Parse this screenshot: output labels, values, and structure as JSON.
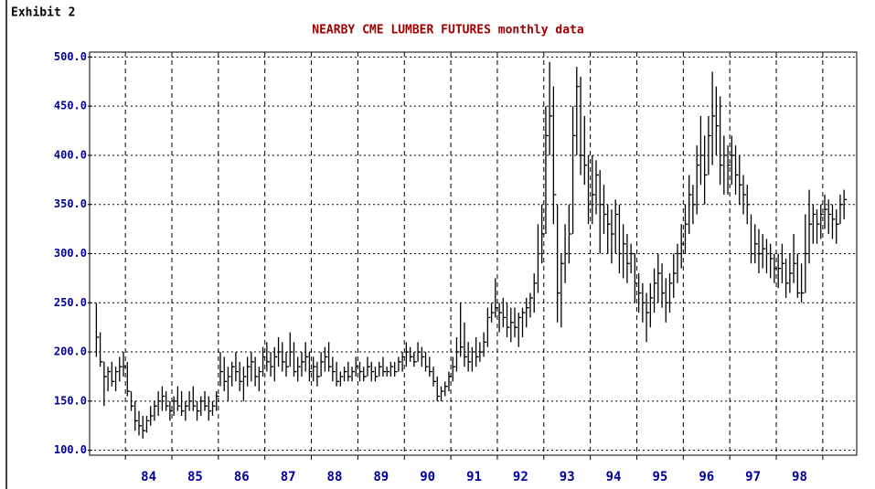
{
  "exhibit": "Exhibit 2",
  "chart_data": {
    "type": "ohlc",
    "title": "NEARBY CME LUMBER FUTURES monthly data",
    "color": "#000000",
    "xlim": [
      1983.23,
      1999.73
    ],
    "ylim": [
      95,
      505
    ],
    "yticks": [
      {
        "value": 100,
        "label": "100.0"
      },
      {
        "value": 150,
        "label": "150.0"
      },
      {
        "value": 200,
        "label": "200.0"
      },
      {
        "value": 250,
        "label": "250.0"
      },
      {
        "value": 300,
        "label": "300.0"
      },
      {
        "value": 350,
        "label": "350.0"
      },
      {
        "value": 400,
        "label": "400.0"
      },
      {
        "value": 450,
        "label": "450.0"
      },
      {
        "value": 500,
        "label": "500.0"
      }
    ],
    "xticks": [
      {
        "value": 1984.5,
        "label": "84"
      },
      {
        "value": 1985.5,
        "label": "85"
      },
      {
        "value": 1986.5,
        "label": "86"
      },
      {
        "value": 1987.5,
        "label": "87"
      },
      {
        "value": 1988.5,
        "label": "88"
      },
      {
        "value": 1989.5,
        "label": "89"
      },
      {
        "value": 1990.5,
        "label": "90"
      },
      {
        "value": 1991.5,
        "label": "91"
      },
      {
        "value": 1992.5,
        "label": "92"
      },
      {
        "value": 1993.5,
        "label": "93"
      },
      {
        "value": 1994.5,
        "label": "94"
      },
      {
        "value": 1995.5,
        "label": "95"
      },
      {
        "value": 1996.5,
        "label": "96"
      },
      {
        "value": 1997.5,
        "label": "97"
      },
      {
        "value": 1998.5,
        "label": "98"
      }
    ],
    "xgrid": [
      1984,
      1985,
      1986,
      1987,
      1988,
      1989,
      1990,
      1991,
      1992,
      1993,
      1994,
      1995,
      1996,
      1997,
      1998,
      1999
    ],
    "grid": true,
    "x": [
      1983.375,
      1983.458,
      1983.542,
      1983.625,
      1983.708,
      1983.792,
      1983.875,
      1983.958,
      1984.042,
      1984.125,
      1984.208,
      1984.292,
      1984.375,
      1984.458,
      1984.542,
      1984.625,
      1984.708,
      1984.792,
      1984.875,
      1984.958,
      1985.042,
      1985.125,
      1985.208,
      1985.292,
      1985.375,
      1985.458,
      1985.542,
      1985.625,
      1985.708,
      1985.792,
      1985.875,
      1985.958,
      1986.042,
      1986.125,
      1986.208,
      1986.292,
      1986.375,
      1986.458,
      1986.542,
      1986.625,
      1986.708,
      1986.792,
      1986.875,
      1986.958,
      1987.042,
      1987.125,
      1987.208,
      1987.292,
      1987.375,
      1987.458,
      1987.542,
      1987.625,
      1987.708,
      1987.792,
      1987.875,
      1987.958,
      1988.042,
      1988.125,
      1988.208,
      1988.292,
      1988.375,
      1988.458,
      1988.542,
      1988.625,
      1988.708,
      1988.792,
      1988.875,
      1988.958,
      1989.042,
      1989.125,
      1989.208,
      1989.292,
      1989.375,
      1989.458,
      1989.542,
      1989.625,
      1989.708,
      1989.792,
      1989.875,
      1989.958,
      1990.042,
      1990.125,
      1990.208,
      1990.292,
      1990.375,
      1990.458,
      1990.542,
      1990.625,
      1990.708,
      1990.792,
      1990.875,
      1990.958,
      1991.042,
      1991.125,
      1991.208,
      1991.292,
      1991.375,
      1991.458,
      1991.542,
      1991.625,
      1991.708,
      1991.792,
      1991.875,
      1991.958,
      1992.042,
      1992.125,
      1992.208,
      1992.292,
      1992.375,
      1992.458,
      1992.542,
      1992.625,
      1992.708,
      1992.792,
      1992.875,
      1992.958,
      1993.042,
      1993.125,
      1993.208,
      1993.292,
      1993.375,
      1993.458,
      1993.542,
      1993.625,
      1993.708,
      1993.792,
      1993.875,
      1993.958,
      1994.042,
      1994.125,
      1994.208,
      1994.292,
      1994.375,
      1994.458,
      1994.542,
      1994.625,
      1994.708,
      1994.792,
      1994.875,
      1994.958,
      1995.042,
      1995.125,
      1995.208,
      1995.292,
      1995.375,
      1995.458,
      1995.542,
      1995.625,
      1995.708,
      1995.792,
      1995.875,
      1995.958,
      1996.042,
      1996.125,
      1996.208,
      1996.292,
      1996.375,
      1996.458,
      1996.542,
      1996.625,
      1996.708,
      1996.792,
      1996.875,
      1996.958,
      1997.042,
      1997.125,
      1997.208,
      1997.292,
      1997.375,
      1997.458,
      1997.542,
      1997.625,
      1997.708,
      1997.792,
      1997.875,
      1997.958,
      1998.042,
      1998.125,
      1998.208,
      1998.292,
      1998.375,
      1998.458,
      1998.542,
      1998.625,
      1998.708,
      1998.792,
      1998.875,
      1998.958,
      1999.042,
      1999.125,
      1999.208,
      1999.292,
      1999.375,
      1999.458
    ],
    "high": [
      250,
      220,
      190,
      185,
      190,
      185,
      195,
      200,
      190,
      160,
      150,
      140,
      135,
      135,
      145,
      150,
      160,
      165,
      160,
      150,
      155,
      165,
      160,
      150,
      160,
      165,
      150,
      155,
      160,
      155,
      150,
      160,
      200,
      195,
      185,
      190,
      200,
      190,
      185,
      195,
      200,
      195,
      185,
      205,
      210,
      200,
      205,
      215,
      210,
      200,
      220,
      210,
      195,
      200,
      210,
      200,
      195,
      190,
      200,
      205,
      210,
      195,
      190,
      180,
      185,
      190,
      185,
      195,
      190,
      185,
      195,
      190,
      185,
      190,
      195,
      185,
      190,
      190,
      195,
      200,
      210,
      205,
      200,
      210,
      205,
      200,
      195,
      185,
      175,
      165,
      170,
      180,
      195,
      215,
      250,
      230,
      210,
      205,
      215,
      210,
      220,
      245,
      250,
      275,
      250,
      255,
      250,
      245,
      245,
      240,
      245,
      255,
      260,
      280,
      330,
      350,
      450,
      495,
      470,
      350,
      300,
      330,
      350,
      450,
      490,
      480,
      440,
      400,
      400,
      395,
      385,
      370,
      350,
      345,
      355,
      350,
      330,
      320,
      310,
      300,
      280,
      270,
      260,
      270,
      285,
      300,
      290,
      275,
      280,
      300,
      310,
      330,
      350,
      380,
      370,
      410,
      440,
      420,
      440,
      485,
      470,
      460,
      420,
      410,
      420,
      410,
      400,
      380,
      370,
      340,
      330,
      325,
      320,
      315,
      310,
      300,
      300,
      310,
      295,
      300,
      320,
      300,
      290,
      340,
      365,
      350,
      345,
      350,
      360,
      355,
      350,
      345,
      360,
      365
    ],
    "low": [
      195,
      185,
      145,
      160,
      165,
      160,
      170,
      175,
      155,
      140,
      120,
      115,
      112,
      118,
      125,
      130,
      135,
      140,
      140,
      130,
      135,
      140,
      135,
      130,
      140,
      140,
      130,
      135,
      140,
      130,
      135,
      140,
      165,
      160,
      150,
      165,
      170,
      160,
      150,
      165,
      170,
      165,
      160,
      175,
      180,
      175,
      170,
      185,
      180,
      175,
      185,
      175,
      170,
      175,
      180,
      170,
      170,
      165,
      175,
      180,
      180,
      170,
      165,
      165,
      170,
      170,
      170,
      175,
      170,
      170,
      175,
      170,
      170,
      175,
      175,
      175,
      175,
      175,
      180,
      180,
      185,
      190,
      185,
      190,
      185,
      180,
      175,
      165,
      150,
      150,
      155,
      160,
      170,
      180,
      195,
      185,
      180,
      180,
      185,
      190,
      195,
      205,
      230,
      235,
      220,
      225,
      215,
      210,
      215,
      205,
      215,
      225,
      235,
      240,
      260,
      290,
      320,
      400,
      330,
      230,
      225,
      270,
      290,
      320,
      400,
      380,
      370,
      330,
      330,
      340,
      300,
      320,
      300,
      290,
      300,
      280,
      275,
      270,
      280,
      250,
      240,
      230,
      210,
      225,
      240,
      250,
      245,
      230,
      240,
      255,
      270,
      285,
      300,
      320,
      330,
      340,
      370,
      350,
      380,
      390,
      400,
      370,
      360,
      360,
      370,
      360,
      350,
      340,
      330,
      290,
      290,
      280,
      285,
      280,
      275,
      270,
      265,
      270,
      255,
      260,
      270,
      255,
      250,
      260,
      290,
      310,
      310,
      315,
      325,
      320,
      315,
      310,
      330,
      335
    ],
    "close": [
      215,
      190,
      175,
      180,
      170,
      180,
      185,
      185,
      160,
      145,
      130,
      125,
      120,
      130,
      135,
      145,
      150,
      155,
      145,
      140,
      150,
      145,
      140,
      145,
      150,
      145,
      140,
      150,
      145,
      140,
      145,
      155,
      180,
      170,
      175,
      185,
      180,
      170,
      175,
      185,
      190,
      175,
      180,
      195,
      190,
      185,
      195,
      200,
      190,
      185,
      200,
      180,
      185,
      190,
      195,
      180,
      185,
      175,
      190,
      195,
      185,
      180,
      170,
      175,
      180,
      175,
      180,
      185,
      180,
      175,
      185,
      180,
      175,
      185,
      180,
      180,
      185,
      180,
      190,
      195,
      200,
      195,
      190,
      200,
      195,
      185,
      180,
      170,
      155,
      160,
      165,
      175,
      185,
      200,
      205,
      195,
      190,
      200,
      195,
      200,
      210,
      235,
      240,
      245,
      240,
      235,
      225,
      230,
      225,
      235,
      240,
      245,
      255,
      270,
      300,
      320,
      420,
      440,
      360,
      260,
      290,
      300,
      320,
      420,
      470,
      400,
      390,
      350,
      360,
      380,
      350,
      340,
      330,
      320,
      340,
      300,
      310,
      290,
      300,
      270,
      260,
      250,
      240,
      255,
      270,
      280,
      260,
      250,
      270,
      280,
      300,
      310,
      330,
      360,
      350,
      390,
      400,
      380,
      420,
      440,
      430,
      390,
      400,
      390,
      400,
      380,
      370,
      360,
      350,
      300,
      310,
      300,
      305,
      300,
      295,
      285,
      285,
      290,
      270,
      280,
      290,
      260,
      260,
      300,
      330,
      340,
      330,
      340,
      345,
      340,
      335,
      330,
      350,
      355
    ]
  }
}
